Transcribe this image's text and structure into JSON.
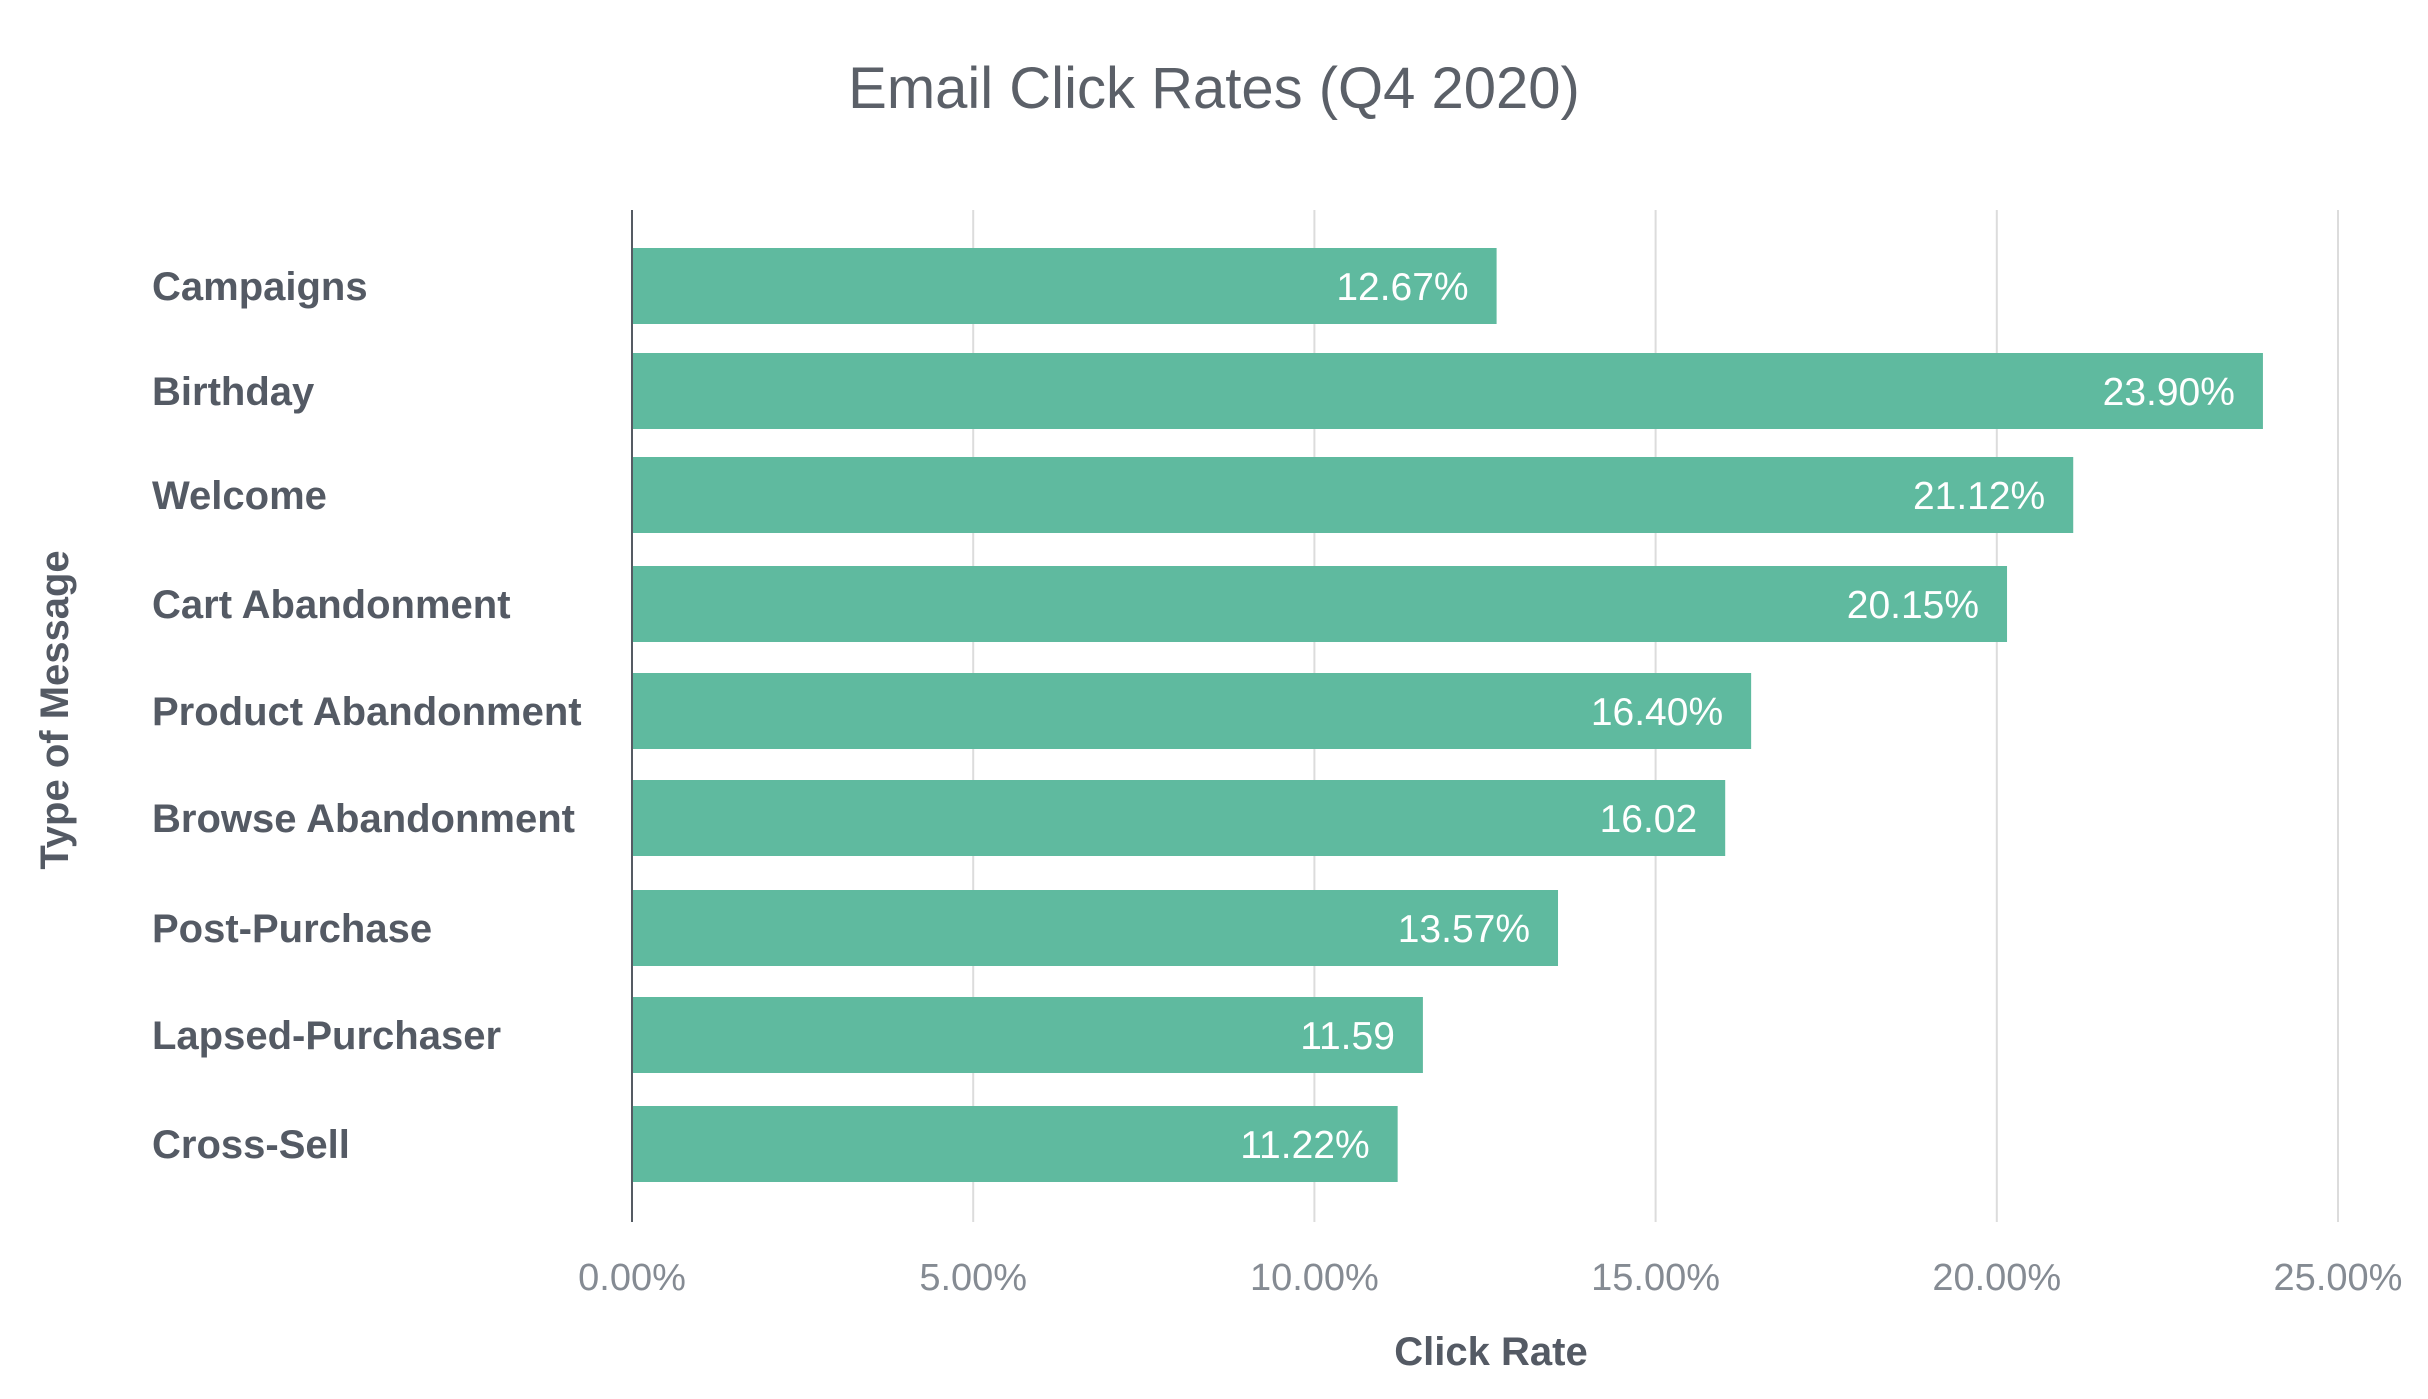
{
  "chart_data": {
    "type": "bar",
    "orientation": "horizontal",
    "title": "Email Click Rates (Q4 2020)",
    "xlabel": "Click Rate",
    "ylabel": "Type of Message",
    "categories": [
      "Campaigns",
      "Birthday",
      "Welcome",
      "Cart Abandonment",
      "Product Abandonment",
      "Browse Abandonment",
      "Post-Purchase",
      "Lapsed-Purchaser",
      "Cross-Sell"
    ],
    "values": [
      12.67,
      23.9,
      21.12,
      20.15,
      16.4,
      16.02,
      13.57,
      11.59,
      11.22
    ],
    "data_labels": [
      "12.67%",
      "23.90%",
      "21.12%",
      "20.15%",
      "16.40%",
      "16.02",
      "13.57%",
      "11.59",
      "11.22%"
    ],
    "xlim": [
      0,
      25
    ],
    "xticks": [
      0,
      5,
      10,
      15,
      20,
      25
    ],
    "xtick_labels": [
      "0.00%",
      "5.00%",
      "10.00%",
      "15.00%",
      "20.00%",
      "25.00%"
    ],
    "grid": "vertical",
    "legend": "none",
    "bar_color": "#5fba9f"
  }
}
